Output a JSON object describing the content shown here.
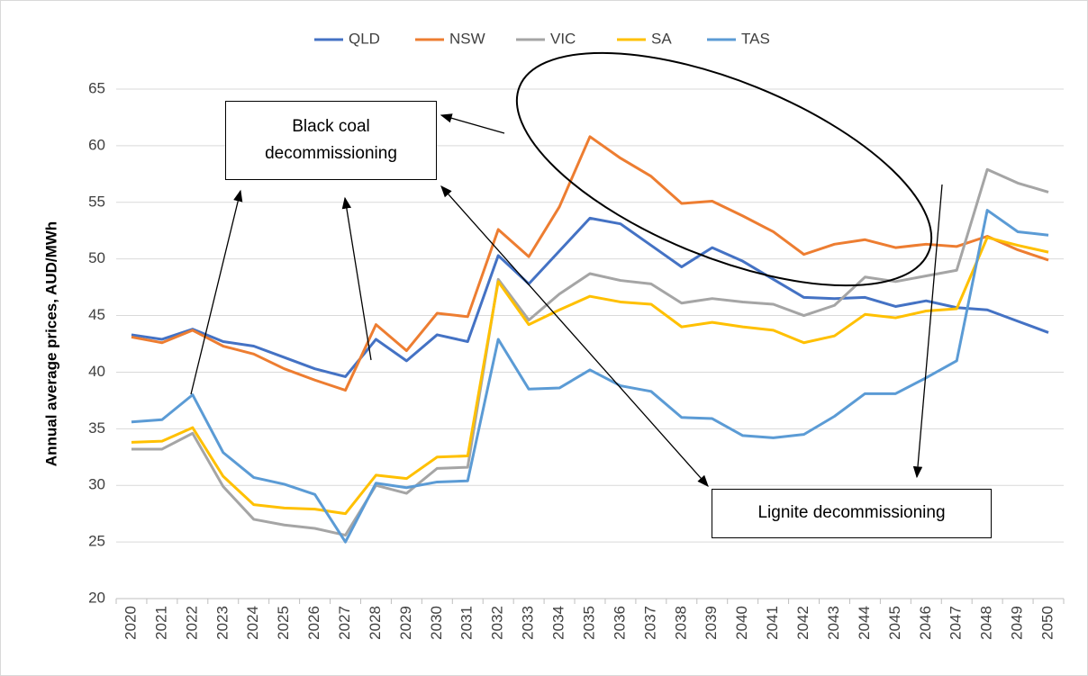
{
  "chart_data": {
    "type": "line",
    "y_label": "Annual average prices, AUD/MWh",
    "categories": [
      "2020",
      "2021",
      "2022",
      "2023",
      "2024",
      "2025",
      "2026",
      "2027",
      "2028",
      "2029",
      "2030",
      "2031",
      "2032",
      "2033",
      "2034",
      "2035",
      "2036",
      "2037",
      "2038",
      "2039",
      "2040",
      "2041",
      "2042",
      "2043",
      "2044",
      "2045",
      "2046",
      "2047",
      "2048",
      "2049",
      "2050"
    ],
    "series": [
      {
        "name": "QLD",
        "color": "#4472c4",
        "values": [
          43.3,
          42.9,
          43.8,
          42.7,
          42.3,
          41.3,
          40.3,
          39.6,
          42.9,
          41.0,
          43.3,
          42.7,
          50.3,
          47.8,
          50.7,
          53.6,
          53.1,
          51.2,
          49.3,
          51.0,
          49.8,
          48.2,
          46.6,
          46.5,
          46.6,
          45.8,
          46.3,
          45.7,
          45.5,
          44.5,
          43.5
        ]
      },
      {
        "name": "NSW",
        "color": "#ed7d31",
        "values": [
          43.1,
          42.6,
          43.7,
          42.3,
          41.6,
          40.3,
          39.3,
          38.4,
          44.2,
          41.9,
          45.2,
          44.9,
          52.6,
          50.2,
          54.6,
          60.8,
          58.9,
          57.3,
          54.9,
          55.1,
          53.8,
          52.4,
          50.4,
          51.3,
          51.7,
          51.0,
          51.3,
          51.1,
          52.0,
          50.8,
          49.9
        ]
      },
      {
        "name": "VIC",
        "color": "#a5a5a5",
        "values": [
          33.2,
          33.2,
          34.6,
          29.9,
          27.0,
          26.5,
          26.2,
          25.6,
          30.0,
          29.3,
          31.5,
          31.6,
          48.2,
          44.6,
          46.9,
          48.7,
          48.1,
          47.8,
          46.1,
          46.5,
          46.2,
          46.0,
          45.0,
          45.9,
          48.4,
          48.0,
          48.5,
          49.0,
          57.9,
          56.7,
          55.9
        ]
      },
      {
        "name": "SA",
        "color": "#ffc000",
        "values": [
          33.8,
          33.9,
          35.1,
          30.8,
          28.3,
          28.0,
          27.9,
          27.5,
          30.9,
          30.6,
          32.5,
          32.6,
          48.0,
          44.2,
          45.5,
          46.7,
          46.2,
          46.0,
          44.0,
          44.4,
          44.0,
          43.7,
          42.6,
          43.2,
          45.1,
          44.8,
          45.4,
          45.6,
          51.9,
          51.2,
          50.6
        ]
      },
      {
        "name": "TAS",
        "color": "#5b9bd5",
        "values": [
          35.6,
          35.8,
          38.0,
          32.9,
          30.7,
          30.1,
          29.2,
          25.0,
          30.2,
          29.8,
          30.3,
          30.4,
          42.9,
          38.5,
          38.6,
          40.2,
          38.8,
          38.3,
          36.0,
          35.9,
          34.4,
          34.2,
          34.5,
          36.1,
          38.1,
          38.1,
          39.5,
          41.0,
          54.3,
          52.4,
          52.1
        ]
      }
    ],
    "ylim": [
      20,
      65
    ],
    "yticks": [
      20,
      25,
      30,
      35,
      40,
      45,
      50,
      55,
      60,
      65
    ],
    "grid": true,
    "legend": "top",
    "annotations": [
      {
        "text": "Black coal decommissioning"
      },
      {
        "text": "Lignite decommissioning"
      }
    ]
  }
}
